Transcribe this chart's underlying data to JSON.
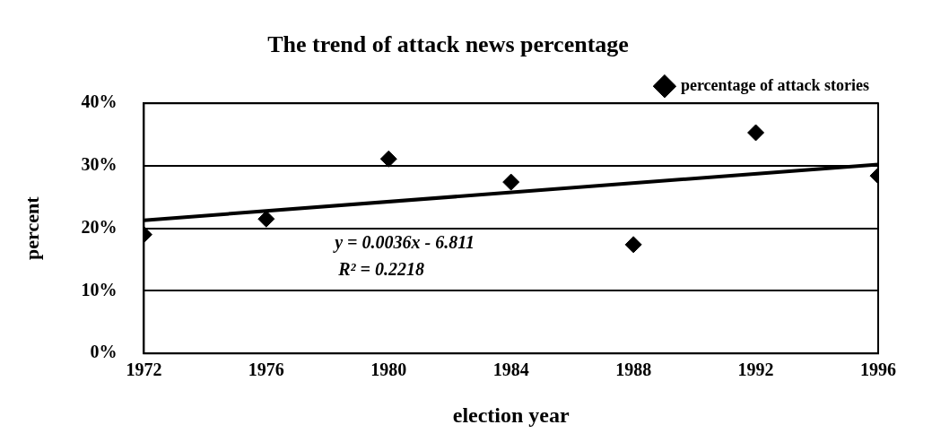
{
  "chart_data": {
    "type": "scatter",
    "title": "The trend of attack news percentage",
    "xlabel": "election year",
    "ylabel": "percent",
    "series": [
      {
        "name": "percentage of attack stories",
        "color": "#000000",
        "marker": "diamond",
        "x": [
          1972,
          1976,
          1980,
          1984,
          1988,
          1992,
          1996
        ],
        "values": [
          19.0,
          21.5,
          31.1,
          27.4,
          17.4,
          35.3,
          28.4
        ]
      },
      {
        "type": "line",
        "color": "#000000",
        "x": [
          1972,
          1996
        ],
        "values": [
          21.3,
          30.2
        ]
      }
    ],
    "xlim": [
      1972,
      1996
    ],
    "xticks": [
      1972,
      1976,
      1980,
      1984,
      1988,
      1992,
      1996
    ],
    "ylim": [
      0,
      40
    ],
    "yticks": [
      {
        "value": 0,
        "label": "0%"
      },
      {
        "value": 10,
        "label": "10%"
      },
      {
        "value": 20,
        "label": "20%"
      },
      {
        "value": 30,
        "label": "30%"
      },
      {
        "value": 40,
        "label": "40%"
      }
    ],
    "annotations": [
      "y = 0.0036x - 6.811",
      "R² = 0.2218"
    ],
    "grid": "y",
    "legend": "top right"
  }
}
